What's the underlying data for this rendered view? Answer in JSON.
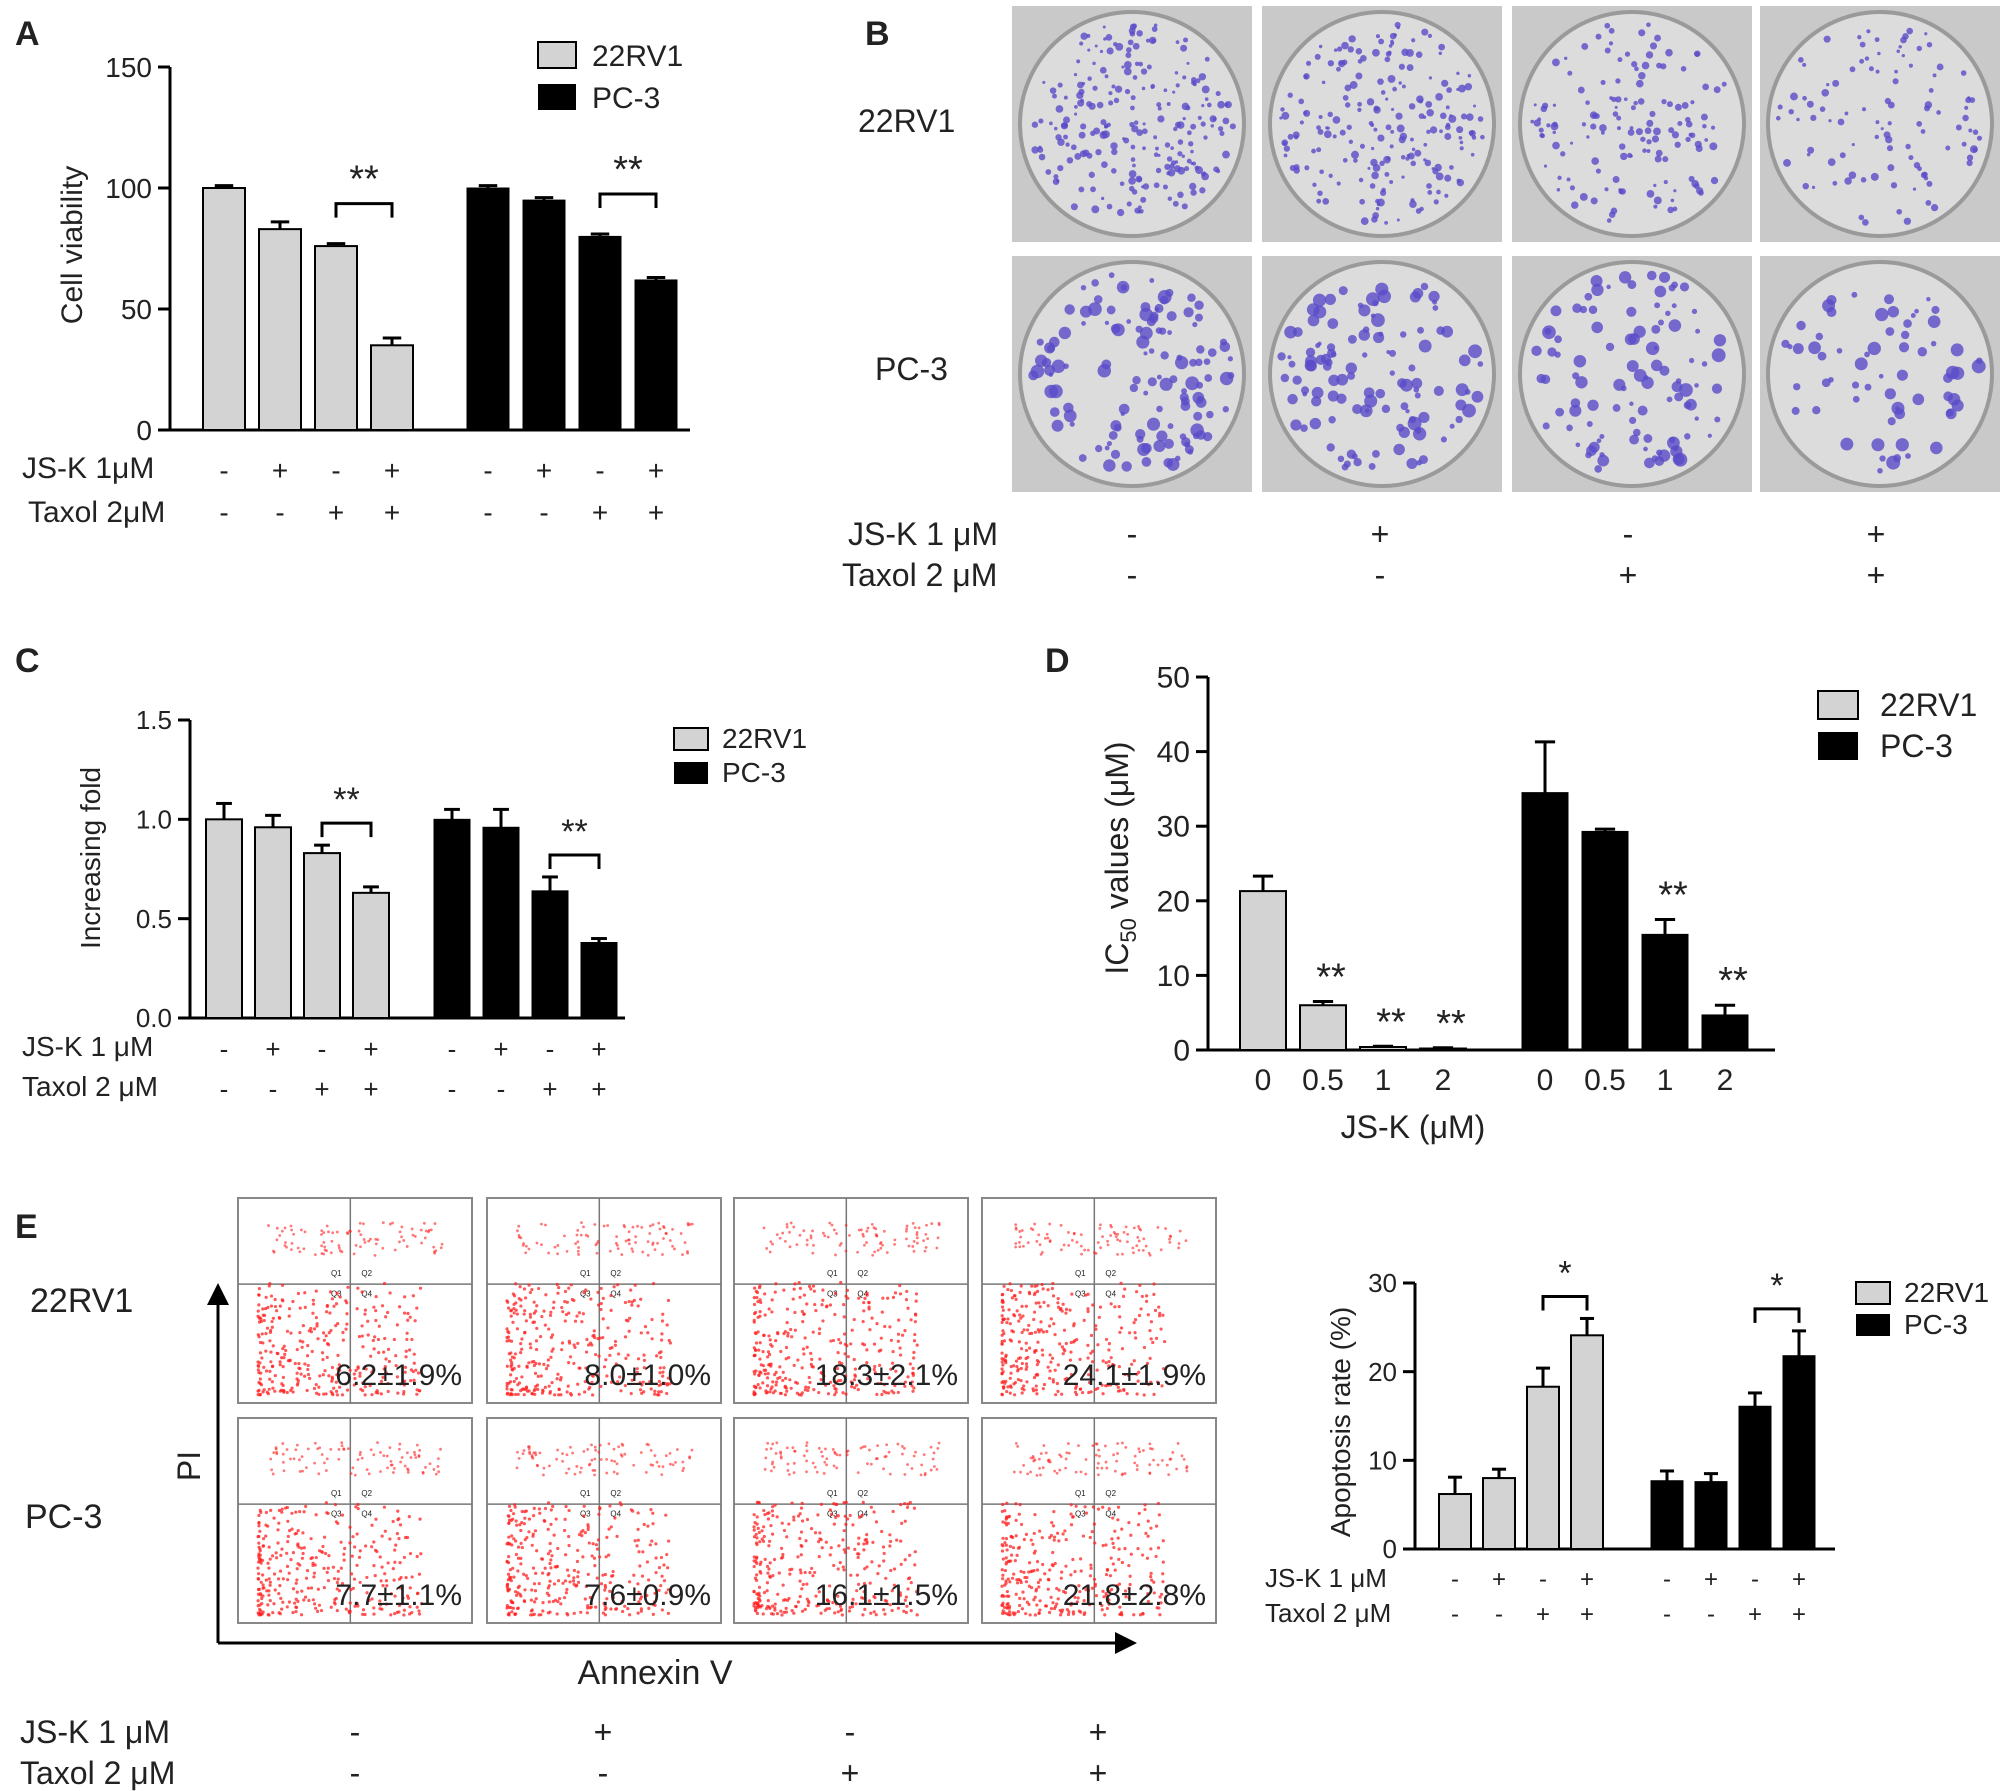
{
  "panels": {
    "A": "A",
    "B": "B",
    "C": "C",
    "D": "D",
    "E": "E"
  },
  "colors": {
    "22RV1": "#d3d3d3",
    "PC-3": "#000000",
    "stain": "#5a4bc8",
    "flow": "#ff2020"
  },
  "legend": {
    "s1": "22RV1",
    "s2": "PC-3"
  },
  "treatment_labels": {
    "A": {
      "jsk": "JS-K 1μM",
      "taxol": "Taxol 2μM"
    },
    "B": {
      "jsk": "JS-K 1 μM",
      "taxol": "Taxol 2 μM"
    },
    "C": {
      "jsk": "JS-K 1 μM",
      "taxol": "Taxol 2 μM"
    },
    "E": {
      "jsk": "JS-K 1 μM",
      "taxol": "Taxol 2 μM"
    },
    "E2": {
      "jsk": "JS-K 1 μM",
      "taxol": "Taxol 2 μM"
    }
  },
  "treatments": {
    "jsk": [
      "-",
      "+",
      "-",
      "+"
    ],
    "taxol": [
      "-",
      "-",
      "+",
      "+"
    ]
  },
  "panelB": {
    "row1": "22RV1",
    "row2": "PC-3"
  },
  "panelE": {
    "row1": "22RV1",
    "row2": "PC-3",
    "xaxis": "Annexin V",
    "yaxis": "PI",
    "percent_22RV1": [
      "6.2",
      "8.0",
      "18.3",
      "24.1"
    ],
    "sd_22RV1": [
      "1.9%",
      "1.0%",
      "2.1%",
      "1.9%"
    ],
    "percent_PC3": [
      "7.7",
      "7.6",
      "16.1",
      "21.8"
    ],
    "sd_PC3": [
      "1.1%",
      "0.9%",
      "1.5%",
      "2.8%"
    ],
    "pm": "±",
    "quadrants": [
      "Q1",
      "Q2",
      "Q3",
      "Q4"
    ]
  },
  "chart_data": [
    {
      "id": "A",
      "type": "bar",
      "ylabel": "Cell viability",
      "ylim": [
        0,
        150
      ],
      "yticks": [
        0,
        50,
        100,
        150
      ],
      "series": [
        {
          "name": "22RV1",
          "values": [
            100,
            83,
            76,
            35
          ],
          "errors": [
            1,
            3,
            1,
            3
          ]
        },
        {
          "name": "PC-3",
          "values": [
            100,
            95,
            80,
            62
          ],
          "errors": [
            1,
            1,
            1,
            1
          ]
        }
      ],
      "significance": "**"
    },
    {
      "id": "C",
      "type": "bar",
      "ylabel": "Increasing fold",
      "ylim": [
        0,
        1.5
      ],
      "yticks": [
        "0.0",
        "0.5",
        "1.0",
        "1.5"
      ],
      "series": [
        {
          "name": "22RV1",
          "values": [
            1.0,
            0.96,
            0.83,
            0.63
          ],
          "errors": [
            0.08,
            0.06,
            0.04,
            0.03
          ]
        },
        {
          "name": "PC-3",
          "values": [
            1.0,
            0.96,
            0.64,
            0.38
          ],
          "errors": [
            0.05,
            0.09,
            0.07,
            0.02
          ]
        }
      ],
      "significance": "**"
    },
    {
      "id": "D",
      "type": "bar",
      "ylabel": "IC50 values (μM)",
      "xlabel": "JS-K (μM)",
      "ylim": [
        0,
        50
      ],
      "yticks": [
        0,
        10,
        20,
        30,
        40,
        50
      ],
      "categories": [
        "0",
        "0.5",
        "1",
        "2"
      ],
      "series": [
        {
          "name": "22RV1",
          "values": [
            21.3,
            6.0,
            0.4,
            0.2
          ],
          "errors": [
            2.0,
            0.5,
            0.1,
            0.1
          ]
        },
        {
          "name": "PC-3",
          "values": [
            34.5,
            29.3,
            15.5,
            4.7
          ],
          "errors": [
            6.8,
            0.3,
            2.0,
            1.3
          ]
        }
      ],
      "significance": "**"
    },
    {
      "id": "E2",
      "type": "bar",
      "ylabel": "Apoptosis rate (%)",
      "ylim": [
        0,
        30
      ],
      "yticks": [
        0,
        10,
        20,
        30
      ],
      "series": [
        {
          "name": "22RV1",
          "values": [
            6.2,
            8.0,
            18.3,
            24.1
          ],
          "errors": [
            1.9,
            1.0,
            2.1,
            1.9
          ]
        },
        {
          "name": "PC-3",
          "values": [
            7.7,
            7.6,
            16.1,
            21.8
          ],
          "errors": [
            1.1,
            0.9,
            1.5,
            2.8
          ]
        }
      ],
      "significance": "*"
    }
  ]
}
